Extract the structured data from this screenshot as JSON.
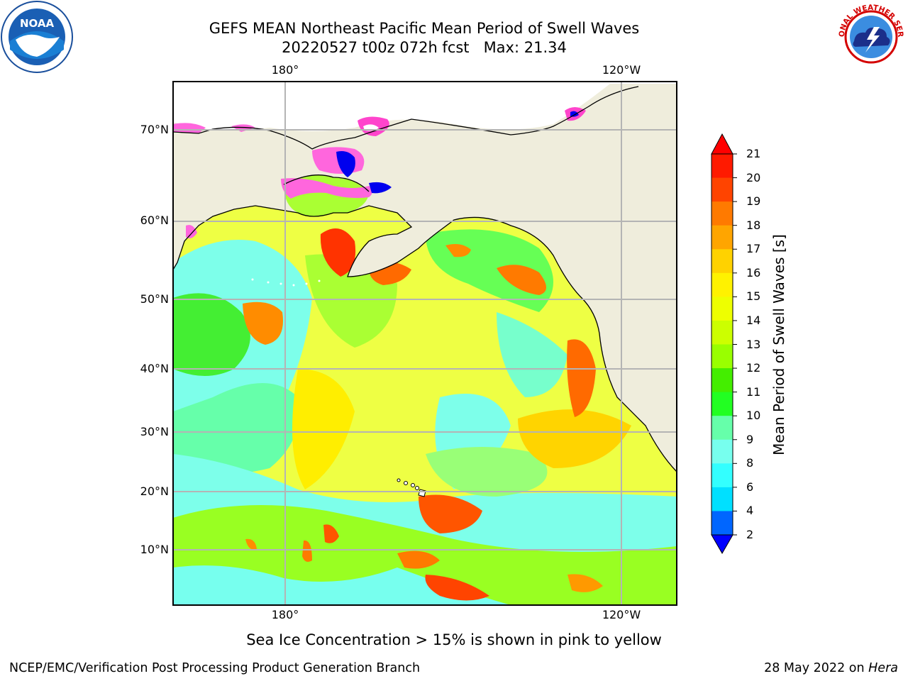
{
  "title": {
    "line1": "GEFS MEAN Northeast Pacific Mean Period of Swell Waves",
    "line2": "20220527 t00z 072h fcst   Max: 21.34"
  },
  "logos": {
    "left": "noaa-logo",
    "right": "national-weather-service-logo",
    "noaa_text": "NOAA",
    "nws_text": "NATIONAL WEATHER SERVICE"
  },
  "map": {
    "region": "Northeast Pacific",
    "top_lon_labels": [
      "180°",
      "120°W"
    ],
    "bottom_lon_labels": [
      "180°",
      "120°W"
    ],
    "lat_labels": [
      "70°N",
      "60°N",
      "50°N",
      "40°N",
      "30°N",
      "20°N",
      "10°N"
    ],
    "colors": {
      "land": "#efeddc",
      "grid": "#b4b4b4",
      "coast": "#000000"
    }
  },
  "colorbar": {
    "label": "Mean Period of Swell Waves [s]",
    "ticks": [
      "21",
      "20",
      "19",
      "18",
      "17",
      "16",
      "15",
      "14",
      "13",
      "12",
      "11",
      "10",
      "9",
      "8",
      "6",
      "4",
      "2"
    ],
    "colors": [
      "#ff1a00",
      "#ff4400",
      "#ff7a00",
      "#ffa500",
      "#ffd200",
      "#fff200",
      "#eeff00",
      "#ccff00",
      "#99ff00",
      "#44ee00",
      "#22ff22",
      "#66ffaa",
      "#77ffee",
      "#33ffff",
      "#00e0ff",
      "#0066ff",
      "#0000ee"
    ],
    "over_color": "#ff0000",
    "under_color": "#0000ff"
  },
  "caption": "Sea Ice Concentration > 15% is shown in pink to yellow",
  "footer": {
    "left": "NCEP/EMC/Verification Post Processing Product Generation Branch",
    "right_date": "28 May 2022 on ",
    "right_host": "Hera"
  }
}
